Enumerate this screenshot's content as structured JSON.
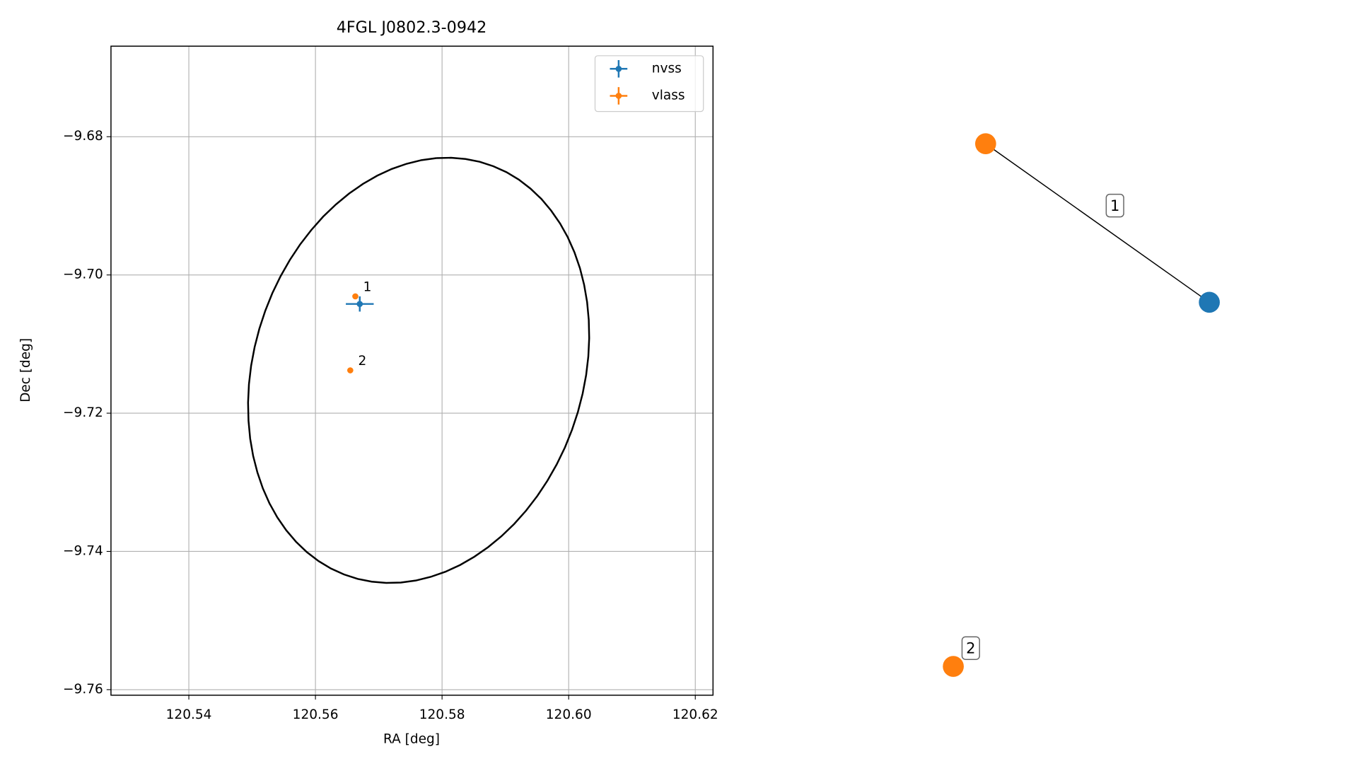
{
  "chart_data": {
    "type": "scatter",
    "title": "4FGL J0802.3-0942",
    "x_label": "RA [deg]",
    "y_label": "Dec [deg]",
    "xlim": [
      120.5277,
      120.6228
    ],
    "ylim": [
      -9.7608,
      -9.6669
    ],
    "xticks": [
      120.54,
      120.56,
      120.58,
      {
        "value": 120.6,
        "label": "120.60"
      },
      120.62
    ],
    "yticks": [
      {
        "value": -9.68,
        "label": "−9.68"
      },
      {
        "value": -9.7,
        "label": "−9.70"
      },
      {
        "value": -9.72,
        "label": "−9.72"
      },
      {
        "value": -9.74,
        "label": "−9.74"
      },
      {
        "value": -9.76,
        "label": "−9.76"
      }
    ],
    "grid": true,
    "legend": "upper right",
    "series": [
      {
        "name": "nvss",
        "color": "#1f77b4",
        "x": [
          120.567
        ],
        "y": [
          -9.7042
        ],
        "xerr": [
          0.0022
        ],
        "yerr": [
          0.0011
        ]
      },
      {
        "name": "vlass",
        "color": "#ff7f0e",
        "x": [
          120.5663,
          120.5655
        ],
        "y": [
          -9.7031,
          -9.7138
        ],
        "labels": [
          "1",
          "2"
        ]
      }
    ],
    "ellipse": {
      "color": "#000000",
      "center": [
        120.5763,
        -9.7138
      ],
      "axis1": [
        0.0028,
        0.0307
      ],
      "axis2": [
        0.0268,
        0.002
      ]
    }
  },
  "graph": {
    "nodes": [
      {
        "color": "#ff7f0e"
      },
      {
        "color": "#1f77b4"
      },
      {
        "color": "#ff7f0e",
        "label": "2"
      }
    ],
    "edges": [
      {
        "source": 0,
        "target": 1,
        "label": "1"
      }
    ]
  }
}
